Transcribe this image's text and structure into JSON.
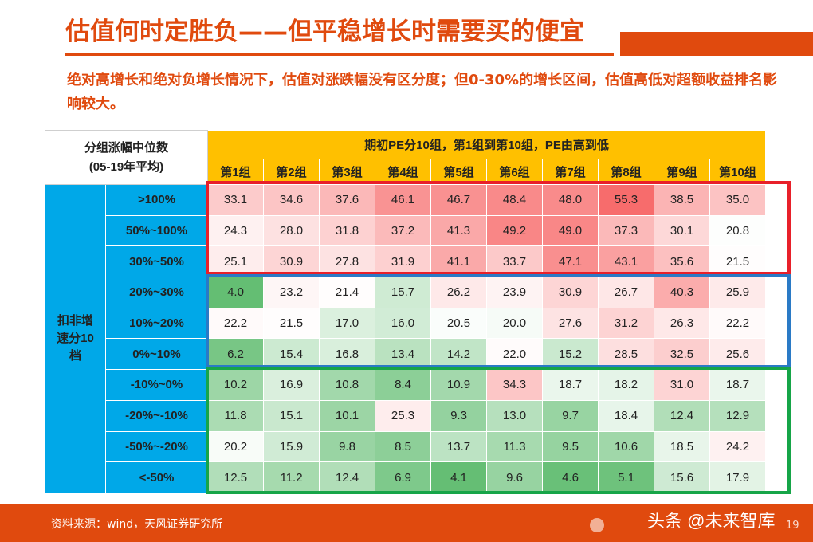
{
  "title": "估值何时定胜负——但平稳增长时需要买的便宜",
  "subtitle": "绝对高增长和绝对负增长情况下，估值对涨跌幅没有区分度；但0-30%的增长区间，估值高低对超额收益排名影响较大。",
  "table": {
    "corner_line1": "分组涨幅中位数",
    "corner_line2": "(05-19年平均)",
    "top_header": "期初PE分10组，第1组到第10组，PE由高到低",
    "groups": [
      "第1组",
      "第2组",
      "第3组",
      "第4组",
      "第5组",
      "第6组",
      "第7组",
      "第8组",
      "第9组",
      "第10组"
    ],
    "side_label": "扣非增速分10档",
    "rows": [
      {
        "label": ">100%",
        "values": [
          33.1,
          34.6,
          37.6,
          46.1,
          46.7,
          48.4,
          48.0,
          55.3,
          38.5,
          35.0
        ]
      },
      {
        "label": "50%~100%",
        "values": [
          24.3,
          28.0,
          31.8,
          37.2,
          41.3,
          49.2,
          49.0,
          37.3,
          30.1,
          20.8
        ]
      },
      {
        "label": "30%~50%",
        "values": [
          25.1,
          30.9,
          27.8,
          31.9,
          41.1,
          33.7,
          47.1,
          43.1,
          35.6,
          21.5
        ]
      },
      {
        "label": "20%~30%",
        "values": [
          4.0,
          23.2,
          21.4,
          15.7,
          26.2,
          23.9,
          30.9,
          26.7,
          40.3,
          25.9
        ]
      },
      {
        "label": "10%~20%",
        "values": [
          22.2,
          21.5,
          17.0,
          16.0,
          20.5,
          20.0,
          27.6,
          31.2,
          26.3,
          22.2
        ]
      },
      {
        "label": "0%~10%",
        "values": [
          6.2,
          15.4,
          16.8,
          13.4,
          14.2,
          22.0,
          15.2,
          28.5,
          32.5,
          25.6
        ]
      },
      {
        "label": "-10%~0%",
        "values": [
          10.2,
          16.9,
          10.8,
          8.4,
          10.9,
          34.3,
          18.7,
          18.2,
          31.0,
          18.7
        ]
      },
      {
        "label": "-20%~-10%",
        "values": [
          11.8,
          15.1,
          10.1,
          25.3,
          9.3,
          13.0,
          9.7,
          18.4,
          12.4,
          12.9
        ]
      },
      {
        "label": "-50%~-20%",
        "values": [
          20.2,
          15.9,
          9.8,
          8.5,
          13.7,
          11.3,
          9.5,
          10.6,
          18.5,
          24.2
        ]
      },
      {
        "label": "<-50%",
        "values": [
          12.5,
          11.2,
          12.4,
          6.9,
          4.1,
          9.6,
          4.6,
          5.1,
          15.6,
          17.9
        ]
      }
    ]
  },
  "colors": {
    "accent": "#e04a0e",
    "header_yellow": "#ffc000",
    "side_blue": "#00a8e8",
    "box_red": "#e8202a",
    "box_blue": "#2a7ac6",
    "box_green": "#16a548"
  },
  "footer": {
    "source": "资料来源：wind，天风证券研究所",
    "watermark": "头条 @未来智库",
    "page": "19"
  }
}
